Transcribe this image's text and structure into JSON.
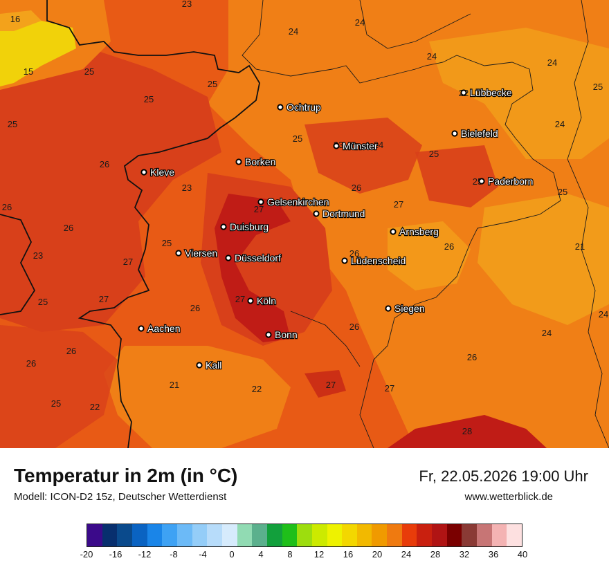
{
  "title": "Temperatur in 2m (in °C)",
  "model": "Modell: ICON-D2 15z, Deutscher Wetterdienst",
  "datetime": "Fr, 22.05.2026 19:00 Uhr",
  "website": "www.wetterblick.de",
  "legend": {
    "ticks": [
      "-20",
      "-16",
      "-12",
      "-8",
      "-4",
      "0",
      "4",
      "8",
      "12",
      "16",
      "20",
      "24",
      "28",
      "32",
      "36",
      "40"
    ],
    "colors": [
      "#3b0a8a",
      "#082f6e",
      "#0a4a8c",
      "#0a63c2",
      "#1a85e8",
      "#3ea2f4",
      "#6cbaf7",
      "#94cdf8",
      "#b7dcfa",
      "#d6ebfc",
      "#91dbb3",
      "#5bb08d",
      "#12a03c",
      "#1fbf1a",
      "#9ddd0e",
      "#ccea00",
      "#eef200",
      "#f3d700",
      "#f2b900",
      "#f09a00",
      "#ef7a10",
      "#e83c0a",
      "#c9200f",
      "#b01414",
      "#7a0000",
      "#8a3a35",
      "#c77575",
      "#f4b3b3",
      "#fde0e0"
    ]
  },
  "colors": {
    "base": "#e85a15",
    "warm": "#d8401a",
    "hot": "#c01c16",
    "mild": "#f07f16",
    "cool": "#f3a21b",
    "yellow": "#f1d20a"
  },
  "cities": [
    {
      "name": "Ochtrup"
    },
    {
      "name": "Lübbecke"
    },
    {
      "name": "Bielefeld"
    },
    {
      "name": "Münster"
    },
    {
      "name": "Borken"
    },
    {
      "name": "Kleve"
    },
    {
      "name": "Paderborn"
    },
    {
      "name": "Gelsenkirchen"
    },
    {
      "name": "Dortmund"
    },
    {
      "name": "Duisburg"
    },
    {
      "name": "Arnsberg"
    },
    {
      "name": "Viersen"
    },
    {
      "name": "Düsseldorf"
    },
    {
      "name": "Lüdenscheid"
    },
    {
      "name": "Köln"
    },
    {
      "name": "Siegen"
    },
    {
      "name": "Aachen"
    },
    {
      "name": "Bonn"
    },
    {
      "name": "Kall"
    }
  ],
  "values": [
    "23",
    "24",
    "24",
    "16",
    "24",
    "24",
    "15",
    "25",
    "25",
    "25",
    "25",
    "25",
    "22",
    "24",
    "25",
    "23",
    "26",
    "24",
    "23",
    "25",
    "26",
    "25",
    "26",
    "26",
    "27",
    "25",
    "23",
    "27",
    "26",
    "25",
    "27",
    "26",
    "21",
    "27",
    "25",
    "27",
    "26",
    "24",
    "26",
    "26",
    "21",
    "22",
    "27",
    "26",
    "25",
    "22",
    "28",
    "26",
    "27",
    "24"
  ]
}
